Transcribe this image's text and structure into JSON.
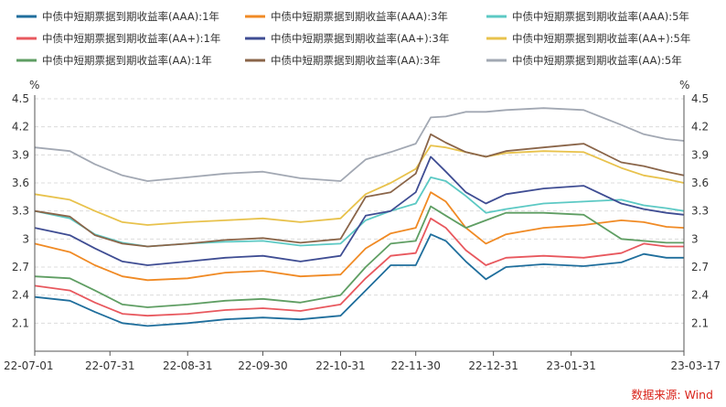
{
  "source": "数据来源: Wind",
  "chart_data": {
    "type": "line",
    "unit_left": "%",
    "unit_right": "%",
    "ylim": [
      1.8,
      4.5
    ],
    "yticks": [
      2.1,
      2.4,
      2.7,
      3,
      3.3,
      3.6,
      3.9,
      4.2,
      4.5
    ],
    "xticks": [
      "22-07-01",
      "22-07-31",
      "22-08-31",
      "22-09-30",
      "22-10-31",
      "22-11-30",
      "22-12-31",
      "23-01-31",
      "23-03-17"
    ],
    "grid": true,
    "legend_position": "top",
    "series": [
      {
        "name": "中债中短期票据到期收益率(AAA):1年",
        "color": "#1f6e9c",
        "points": [
          [
            "22-07-01",
            2.38
          ],
          [
            "22-07-15",
            2.34
          ],
          [
            "22-07-25",
            2.22
          ],
          [
            "22-08-05",
            2.1
          ],
          [
            "22-08-15",
            2.07
          ],
          [
            "22-08-31",
            2.1
          ],
          [
            "22-09-15",
            2.14
          ],
          [
            "22-09-30",
            2.16
          ],
          [
            "22-10-15",
            2.14
          ],
          [
            "22-10-31",
            2.18
          ],
          [
            "22-11-10",
            2.45
          ],
          [
            "22-11-20",
            2.72
          ],
          [
            "22-11-30",
            2.72
          ],
          [
            "22-12-06",
            3.05
          ],
          [
            "22-12-12",
            2.98
          ],
          [
            "22-12-20",
            2.76
          ],
          [
            "22-12-28",
            2.57
          ],
          [
            "23-01-05",
            2.7
          ],
          [
            "23-01-20",
            2.73
          ],
          [
            "23-02-05",
            2.71
          ],
          [
            "23-02-20",
            2.75
          ],
          [
            "23-03-01",
            2.84
          ],
          [
            "23-03-10",
            2.8
          ],
          [
            "23-03-17",
            2.8
          ]
        ]
      },
      {
        "name": "中债中短期票据到期收益率(AAA):3年",
        "color": "#f08a24",
        "points": [
          [
            "22-07-01",
            2.95
          ],
          [
            "22-07-15",
            2.86
          ],
          [
            "22-07-25",
            2.72
          ],
          [
            "22-08-05",
            2.6
          ],
          [
            "22-08-15",
            2.56
          ],
          [
            "22-08-31",
            2.58
          ],
          [
            "22-09-15",
            2.64
          ],
          [
            "22-09-30",
            2.66
          ],
          [
            "22-10-15",
            2.6
          ],
          [
            "22-10-31",
            2.62
          ],
          [
            "22-11-10",
            2.9
          ],
          [
            "22-11-20",
            3.06
          ],
          [
            "22-11-30",
            3.12
          ],
          [
            "22-12-06",
            3.5
          ],
          [
            "22-12-12",
            3.4
          ],
          [
            "22-12-20",
            3.12
          ],
          [
            "22-12-28",
            2.95
          ],
          [
            "23-01-05",
            3.05
          ],
          [
            "23-01-20",
            3.12
          ],
          [
            "23-02-05",
            3.15
          ],
          [
            "23-02-20",
            3.2
          ],
          [
            "23-03-01",
            3.18
          ],
          [
            "23-03-10",
            3.13
          ],
          [
            "23-03-17",
            3.12
          ]
        ]
      },
      {
        "name": "中债中短期票据到期收益率(AAA):5年",
        "color": "#5cc9c4",
        "points": [
          [
            "22-07-01",
            3.3
          ],
          [
            "22-07-15",
            3.22
          ],
          [
            "22-07-25",
            3.05
          ],
          [
            "22-08-05",
            2.96
          ],
          [
            "22-08-15",
            2.92
          ],
          [
            "22-08-31",
            2.95
          ],
          [
            "22-09-15",
            2.97
          ],
          [
            "22-09-30",
            2.98
          ],
          [
            "22-10-15",
            2.93
          ],
          [
            "22-10-31",
            2.95
          ],
          [
            "22-11-10",
            3.2
          ],
          [
            "22-11-20",
            3.3
          ],
          [
            "22-11-30",
            3.38
          ],
          [
            "22-12-06",
            3.66
          ],
          [
            "22-12-12",
            3.62
          ],
          [
            "22-12-20",
            3.46
          ],
          [
            "22-12-28",
            3.28
          ],
          [
            "23-01-05",
            3.32
          ],
          [
            "23-01-20",
            3.38
          ],
          [
            "23-02-05",
            3.4
          ],
          [
            "23-02-20",
            3.42
          ],
          [
            "23-03-01",
            3.36
          ],
          [
            "23-03-10",
            3.33
          ],
          [
            "23-03-17",
            3.3
          ]
        ]
      },
      {
        "name": "中债中短期票据到期收益率(AA+):1年",
        "color": "#e8585e",
        "points": [
          [
            "22-07-01",
            2.5
          ],
          [
            "22-07-15",
            2.45
          ],
          [
            "22-07-25",
            2.32
          ],
          [
            "22-08-05",
            2.2
          ],
          [
            "22-08-15",
            2.18
          ],
          [
            "22-08-31",
            2.2
          ],
          [
            "22-09-15",
            2.24
          ],
          [
            "22-09-30",
            2.26
          ],
          [
            "22-10-15",
            2.23
          ],
          [
            "22-10-31",
            2.3
          ],
          [
            "22-11-10",
            2.58
          ],
          [
            "22-11-20",
            2.82
          ],
          [
            "22-11-30",
            2.85
          ],
          [
            "22-12-06",
            3.22
          ],
          [
            "22-12-12",
            3.12
          ],
          [
            "22-12-20",
            2.88
          ],
          [
            "22-12-28",
            2.72
          ],
          [
            "23-01-05",
            2.8
          ],
          [
            "23-01-20",
            2.82
          ],
          [
            "23-02-05",
            2.8
          ],
          [
            "23-02-20",
            2.85
          ],
          [
            "23-03-01",
            2.95
          ],
          [
            "23-03-10",
            2.92
          ],
          [
            "23-03-17",
            2.92
          ]
        ]
      },
      {
        "name": "中债中短期票据到期收益率(AA+):3年",
        "color": "#3f4d93",
        "points": [
          [
            "22-07-01",
            3.12
          ],
          [
            "22-07-15",
            3.04
          ],
          [
            "22-07-25",
            2.9
          ],
          [
            "22-08-05",
            2.76
          ],
          [
            "22-08-15",
            2.72
          ],
          [
            "22-08-31",
            2.76
          ],
          [
            "22-09-15",
            2.8
          ],
          [
            "22-09-30",
            2.82
          ],
          [
            "22-10-15",
            2.76
          ],
          [
            "22-10-31",
            2.82
          ],
          [
            "22-11-10",
            3.25
          ],
          [
            "22-11-20",
            3.3
          ],
          [
            "22-11-30",
            3.5
          ],
          [
            "22-12-06",
            3.88
          ],
          [
            "22-12-12",
            3.72
          ],
          [
            "22-12-20",
            3.5
          ],
          [
            "22-12-28",
            3.38
          ],
          [
            "23-01-05",
            3.48
          ],
          [
            "23-01-20",
            3.54
          ],
          [
            "23-02-05",
            3.57
          ],
          [
            "23-02-20",
            3.38
          ],
          [
            "23-03-01",
            3.32
          ],
          [
            "23-03-10",
            3.28
          ],
          [
            "23-03-17",
            3.26
          ]
        ]
      },
      {
        "name": "中债中短期票据到期收益率(AA+):5年",
        "color": "#e8c24c",
        "points": [
          [
            "22-07-01",
            3.48
          ],
          [
            "22-07-15",
            3.42
          ],
          [
            "22-07-25",
            3.3
          ],
          [
            "22-08-05",
            3.18
          ],
          [
            "22-08-15",
            3.15
          ],
          [
            "22-08-31",
            3.18
          ],
          [
            "22-09-15",
            3.2
          ],
          [
            "22-09-30",
            3.22
          ],
          [
            "22-10-15",
            3.18
          ],
          [
            "22-10-31",
            3.22
          ],
          [
            "22-11-10",
            3.48
          ],
          [
            "22-11-20",
            3.6
          ],
          [
            "22-11-30",
            3.75
          ],
          [
            "22-12-06",
            4.0
          ],
          [
            "22-12-12",
            3.98
          ],
          [
            "22-12-20",
            3.93
          ],
          [
            "22-12-28",
            3.88
          ],
          [
            "23-01-05",
            3.92
          ],
          [
            "23-01-20",
            3.94
          ],
          [
            "23-02-05",
            3.93
          ],
          [
            "23-02-20",
            3.76
          ],
          [
            "23-03-01",
            3.68
          ],
          [
            "23-03-10",
            3.64
          ],
          [
            "23-03-17",
            3.6
          ]
        ]
      },
      {
        "name": "中债中短期票据到期收益率(AA):1年",
        "color": "#5f9e63",
        "points": [
          [
            "22-07-01",
            2.6
          ],
          [
            "22-07-15",
            2.58
          ],
          [
            "22-07-25",
            2.45
          ],
          [
            "22-08-05",
            2.3
          ],
          [
            "22-08-15",
            2.27
          ],
          [
            "22-08-31",
            2.3
          ],
          [
            "22-09-15",
            2.34
          ],
          [
            "22-09-30",
            2.36
          ],
          [
            "22-10-15",
            2.32
          ],
          [
            "22-10-31",
            2.4
          ],
          [
            "22-11-10",
            2.7
          ],
          [
            "22-11-20",
            2.95
          ],
          [
            "22-11-30",
            2.98
          ],
          [
            "22-12-06",
            3.35
          ],
          [
            "22-12-12",
            3.25
          ],
          [
            "22-12-20",
            3.12
          ],
          [
            "22-12-28",
            3.2
          ],
          [
            "23-01-05",
            3.28
          ],
          [
            "23-01-20",
            3.28
          ],
          [
            "23-02-05",
            3.26
          ],
          [
            "23-02-20",
            3.0
          ],
          [
            "23-03-01",
            2.98
          ],
          [
            "23-03-10",
            2.96
          ],
          [
            "23-03-17",
            2.96
          ]
        ]
      },
      {
        "name": "中债中短期票据到期收益率(AA):3年",
        "color": "#8a6549",
        "points": [
          [
            "22-07-01",
            3.3
          ],
          [
            "22-07-15",
            3.24
          ],
          [
            "22-07-25",
            3.04
          ],
          [
            "22-08-05",
            2.95
          ],
          [
            "22-08-15",
            2.92
          ],
          [
            "22-08-31",
            2.95
          ],
          [
            "22-09-15",
            2.99
          ],
          [
            "22-09-30",
            3.01
          ],
          [
            "22-10-15",
            2.96
          ],
          [
            "22-10-31",
            3.0
          ],
          [
            "22-11-10",
            3.45
          ],
          [
            "22-11-20",
            3.5
          ],
          [
            "22-11-30",
            3.7
          ],
          [
            "22-12-06",
            4.12
          ],
          [
            "22-12-12",
            4.03
          ],
          [
            "22-12-20",
            3.93
          ],
          [
            "22-12-28",
            3.88
          ],
          [
            "23-01-05",
            3.94
          ],
          [
            "23-01-20",
            3.98
          ],
          [
            "23-02-05",
            4.02
          ],
          [
            "23-02-20",
            3.82
          ],
          [
            "23-03-01",
            3.78
          ],
          [
            "23-03-10",
            3.72
          ],
          [
            "23-03-17",
            3.68
          ]
        ]
      },
      {
        "name": "中债中短期票据到期收益率(AA):5年",
        "color": "#a2a8b3",
        "points": [
          [
            "22-07-01",
            3.98
          ],
          [
            "22-07-15",
            3.94
          ],
          [
            "22-07-25",
            3.8
          ],
          [
            "22-08-05",
            3.68
          ],
          [
            "22-08-15",
            3.62
          ],
          [
            "22-08-31",
            3.66
          ],
          [
            "22-09-15",
            3.7
          ],
          [
            "22-09-30",
            3.72
          ],
          [
            "22-10-15",
            3.65
          ],
          [
            "22-10-31",
            3.62
          ],
          [
            "22-11-10",
            3.85
          ],
          [
            "22-11-20",
            3.93
          ],
          [
            "22-11-30",
            4.02
          ],
          [
            "22-12-06",
            4.3
          ],
          [
            "22-12-12",
            4.31
          ],
          [
            "22-12-20",
            4.36
          ],
          [
            "22-12-28",
            4.36
          ],
          [
            "23-01-05",
            4.38
          ],
          [
            "23-01-20",
            4.4
          ],
          [
            "23-02-05",
            4.38
          ],
          [
            "23-02-20",
            4.22
          ],
          [
            "23-03-01",
            4.12
          ],
          [
            "23-03-10",
            4.07
          ],
          [
            "23-03-17",
            4.05
          ]
        ]
      }
    ]
  }
}
